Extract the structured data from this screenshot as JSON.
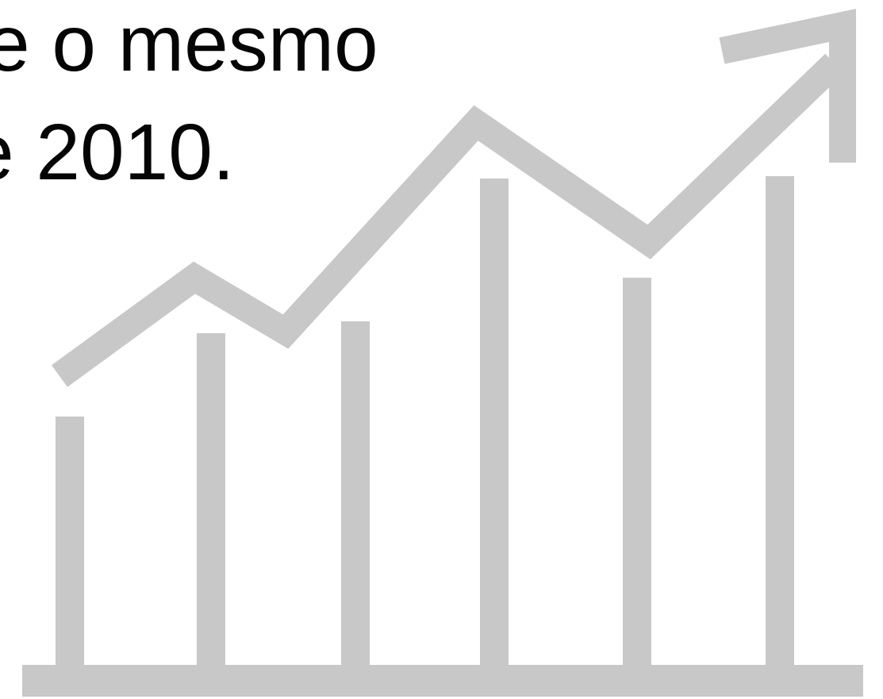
{
  "slide": {
    "line_1": "e o mesmo",
    "line_2": "e 2010."
  },
  "icon": {
    "name": "growth-chart-icon",
    "color": "#c8c8c8"
  }
}
